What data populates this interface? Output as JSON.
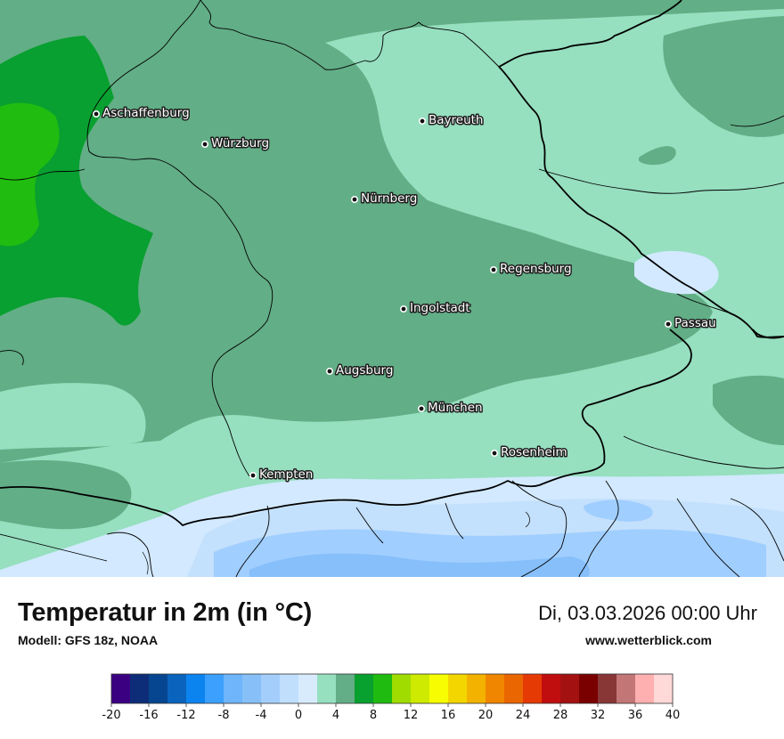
{
  "map": {
    "cities": [
      {
        "name": "Aschaffenburg"
      },
      {
        "name": "Würzburg"
      },
      {
        "name": "Bayreuth"
      },
      {
        "name": "Nürnberg"
      },
      {
        "name": "Regensburg"
      },
      {
        "name": "Ingolstadt"
      },
      {
        "name": "Passau"
      },
      {
        "name": "Augsburg"
      },
      {
        "name": "München"
      },
      {
        "name": "Rosenheim"
      },
      {
        "name": "Kempten"
      }
    ],
    "colors": {
      "band_2_4": "#96dfbf",
      "band_4_6": "#62ae86",
      "band_6_8": "#08a030",
      "band_8_10": "#20bc10",
      "band_0_2": "#d2e9ff",
      "band_m2_0": "#c3e0fc",
      "band_m4_m2": "#a0ceff",
      "band_m6_m4": "#86bffa",
      "borders": "#000000"
    }
  },
  "header": {
    "title": "Temperatur in 2m (in °C)",
    "model": "Modell: GFS 18z, NOAA",
    "datetime": "Di, 03.03.2026 00:00 Uhr",
    "website": "www.wetterblick.com"
  },
  "legend": {
    "colors": [
      "#3b0082",
      "#0e2d78",
      "#064690",
      "#0a64bd",
      "#0c84f0",
      "#3ca0ff",
      "#6eb5fb",
      "#87c0f8",
      "#a3cefc",
      "#c0dffd",
      "#d8ebfd",
      "#96dfbf",
      "#63ad87",
      "#08a02e",
      "#1fbb10",
      "#a0dc00",
      "#cdea00",
      "#f7fd00",
      "#f3d600",
      "#f3b200",
      "#f08600",
      "#ea6600",
      "#e63a04",
      "#c00e0e",
      "#a41111",
      "#7a0000",
      "#883636",
      "#c27676",
      "#feb0b0",
      "#ffd8d8"
    ],
    "ticks": [
      "-20",
      "-16",
      "-12",
      "-8",
      "-4",
      "0",
      "4",
      "8",
      "12",
      "16",
      "20",
      "24",
      "28",
      "32",
      "36",
      "40"
    ]
  }
}
